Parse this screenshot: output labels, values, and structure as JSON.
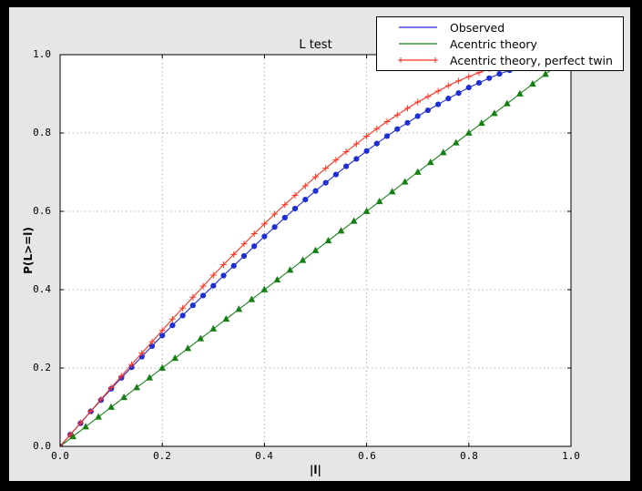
{
  "window": {
    "outer_background": "#000000",
    "figure_background": "#e6e6e6",
    "plot_background": "#ffffff",
    "grid_color": "#b3b3b3"
  },
  "chart_data": {
    "type": "line",
    "title": "L test",
    "xlabel": "|l|",
    "ylabel": "P(L>=l)",
    "xlim": [
      0.0,
      1.0
    ],
    "ylim": [
      0.0,
      1.0
    ],
    "grid": true,
    "legend_position": "upper right",
    "xticks": [
      "0.0",
      "0.2",
      "0.4",
      "0.6",
      "0.8",
      "1.0"
    ],
    "yticks": [
      "0.0",
      "0.2",
      "0.4",
      "0.6",
      "0.8",
      "1.0"
    ],
    "series": [
      {
        "name": "Observed",
        "color": "#1f2fd6",
        "marker": "circle",
        "x": [
          0,
          0.02,
          0.04,
          0.06,
          0.08,
          0.1,
          0.12,
          0.14,
          0.16,
          0.18,
          0.2,
          0.22,
          0.24,
          0.26,
          0.28,
          0.3,
          0.32,
          0.34,
          0.36,
          0.38,
          0.4,
          0.42,
          0.44,
          0.46,
          0.48,
          0.5,
          0.52,
          0.54,
          0.56,
          0.58,
          0.6,
          0.62,
          0.64,
          0.66,
          0.68,
          0.7,
          0.72,
          0.74,
          0.76,
          0.78,
          0.8,
          0.82,
          0.84,
          0.86,
          0.88,
          0.9,
          0.92,
          0.94,
          0.96,
          0.98,
          1.0
        ],
        "y": [
          0,
          0.03,
          0.059,
          0.089,
          0.118,
          0.147,
          0.175,
          0.202,
          0.229,
          0.256,
          0.283,
          0.309,
          0.334,
          0.36,
          0.385,
          0.41,
          0.436,
          0.461,
          0.486,
          0.511,
          0.536,
          0.56,
          0.584,
          0.607,
          0.63,
          0.652,
          0.673,
          0.694,
          0.715,
          0.734,
          0.754,
          0.773,
          0.792,
          0.81,
          0.826,
          0.843,
          0.858,
          0.873,
          0.888,
          0.902,
          0.916,
          0.928,
          0.94,
          0.951,
          0.96,
          0.97,
          0.977,
          0.984,
          0.989,
          0.993,
          0.996
        ]
      },
      {
        "name": "Acentric theory",
        "color": "#148014",
        "marker": "triangle",
        "x": [
          0,
          0.025,
          0.05,
          0.075,
          0.1,
          0.125,
          0.15,
          0.175,
          0.2,
          0.225,
          0.25,
          0.275,
          0.3,
          0.325,
          0.35,
          0.375,
          0.4,
          0.425,
          0.45,
          0.475,
          0.5,
          0.525,
          0.55,
          0.575,
          0.6,
          0.625,
          0.65,
          0.675,
          0.7,
          0.725,
          0.75,
          0.775,
          0.8,
          0.825,
          0.85,
          0.875,
          0.9,
          0.925,
          0.95,
          0.975,
          1.0
        ],
        "y": [
          0,
          0.025,
          0.05,
          0.075,
          0.1,
          0.125,
          0.15,
          0.175,
          0.2,
          0.225,
          0.25,
          0.275,
          0.3,
          0.325,
          0.35,
          0.375,
          0.4,
          0.425,
          0.45,
          0.475,
          0.5,
          0.525,
          0.55,
          0.575,
          0.6,
          0.625,
          0.65,
          0.675,
          0.7,
          0.725,
          0.75,
          0.775,
          0.8,
          0.825,
          0.85,
          0.875,
          0.9,
          0.925,
          0.95,
          0.975,
          1.0
        ]
      },
      {
        "name": "Acentric theory, perfect twin",
        "color": "#ff3322",
        "marker": "plus",
        "x": [
          0,
          0.02,
          0.04,
          0.06,
          0.08,
          0.1,
          0.12,
          0.14,
          0.16,
          0.18,
          0.2,
          0.22,
          0.24,
          0.26,
          0.28,
          0.3,
          0.32,
          0.34,
          0.36,
          0.38,
          0.4,
          0.42,
          0.44,
          0.46,
          0.48,
          0.5,
          0.52,
          0.54,
          0.56,
          0.58,
          0.6,
          0.62,
          0.64,
          0.66,
          0.68,
          0.7,
          0.72,
          0.74,
          0.76,
          0.78,
          0.8,
          0.82,
          0.84,
          0.86,
          0.88,
          0.9,
          0.92,
          0.94,
          0.96,
          0.98,
          1.0
        ],
        "y": [
          0,
          0.03,
          0.06,
          0.09,
          0.12,
          0.15,
          0.179,
          0.209,
          0.238,
          0.267,
          0.296,
          0.325,
          0.353,
          0.381,
          0.409,
          0.437,
          0.464,
          0.49,
          0.517,
          0.543,
          0.568,
          0.593,
          0.617,
          0.641,
          0.665,
          0.688,
          0.71,
          0.731,
          0.752,
          0.772,
          0.792,
          0.811,
          0.829,
          0.846,
          0.863,
          0.879,
          0.893,
          0.907,
          0.921,
          0.933,
          0.944,
          0.954,
          0.964,
          0.972,
          0.979,
          0.986,
          0.991,
          0.995,
          0.998,
          0.999,
          1.0
        ]
      }
    ]
  }
}
